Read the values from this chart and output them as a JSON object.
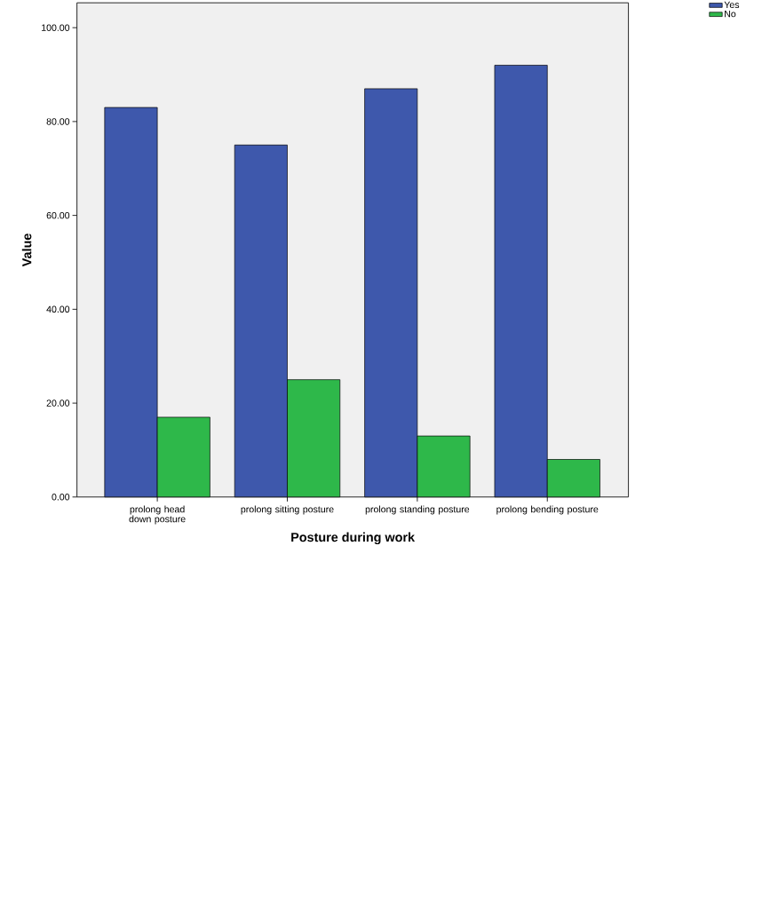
{
  "chart_data": {
    "type": "bar",
    "xlabel": "Posture during work",
    "ylabel": "Value",
    "categories": [
      "prolong head down posture",
      "prolong sitting posture",
      "prolong standing posture",
      "prolong bending posture"
    ],
    "series": [
      {
        "name": "Yes",
        "color": "#3e58ac",
        "values": [
          83,
          75,
          87,
          92
        ]
      },
      {
        "name": "No",
        "color": "#2eb84a",
        "values": [
          17,
          25,
          13,
          8
        ]
      }
    ],
    "ylim": [
      0,
      105.3
    ],
    "yticks": [
      {
        "value": 0,
        "label": "0.00"
      },
      {
        "value": 20,
        "label": "20.00"
      },
      {
        "value": 40,
        "label": "40.00"
      },
      {
        "value": 60,
        "label": "60.00"
      },
      {
        "value": 80,
        "label": "80.00"
      },
      {
        "value": 100,
        "label": "100.00"
      }
    ],
    "grid": false,
    "legend": "top right"
  }
}
